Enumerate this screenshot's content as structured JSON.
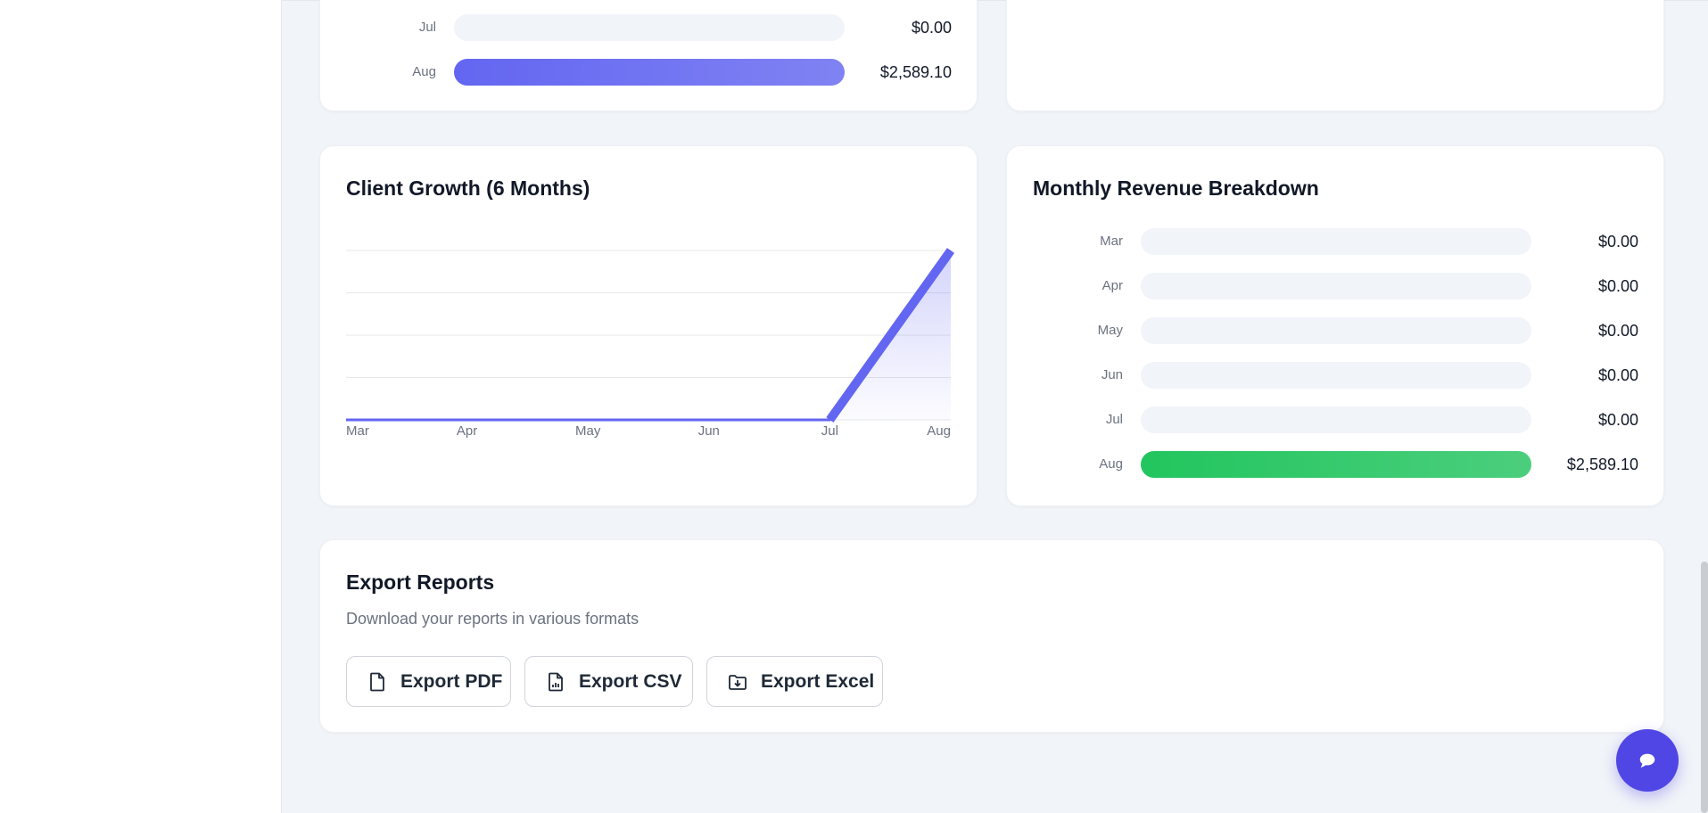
{
  "top_card": {
    "rows": [
      {
        "month": "Jul",
        "value": "$0.00",
        "fraction": 0
      },
      {
        "month": "Aug",
        "value": "$2,589.10",
        "fraction": 1
      }
    ],
    "fill_color": "#6366f1"
  },
  "client_growth": {
    "title": "Client Growth (6 Months)",
    "chart_data": {
      "type": "area",
      "categories": [
        "Mar",
        "Apr",
        "May",
        "Jun",
        "Jul",
        "Aug"
      ],
      "series": [
        {
          "values": [
            0,
            0,
            0,
            0,
            0,
            4
          ]
        }
      ],
      "ylim": [
        0,
        4
      ],
      "grid": true,
      "color": "#6366f1"
    }
  },
  "revenue_breakdown": {
    "title": "Monthly Revenue Breakdown",
    "rows": [
      {
        "month": "Mar",
        "value": "$0.00",
        "fraction": 0
      },
      {
        "month": "Apr",
        "value": "$0.00",
        "fraction": 0
      },
      {
        "month": "May",
        "value": "$0.00",
        "fraction": 0
      },
      {
        "month": "Jun",
        "value": "$0.00",
        "fraction": 0
      },
      {
        "month": "Jul",
        "value": "$0.00",
        "fraction": 0
      },
      {
        "month": "Aug",
        "value": "$2,589.10",
        "fraction": 1
      }
    ],
    "fill_color": "#22c55e"
  },
  "export": {
    "title": "Export Reports",
    "subtitle": "Download your reports in various formats",
    "buttons": [
      {
        "label": "Export PDF",
        "icon": "file-icon"
      },
      {
        "label": "Export CSV",
        "icon": "file-chart-icon"
      },
      {
        "label": "Export Excel",
        "icon": "folder-download-icon"
      }
    ]
  },
  "chat": {
    "icon": "chat-bubble-icon",
    "color": "#4f46e5"
  }
}
